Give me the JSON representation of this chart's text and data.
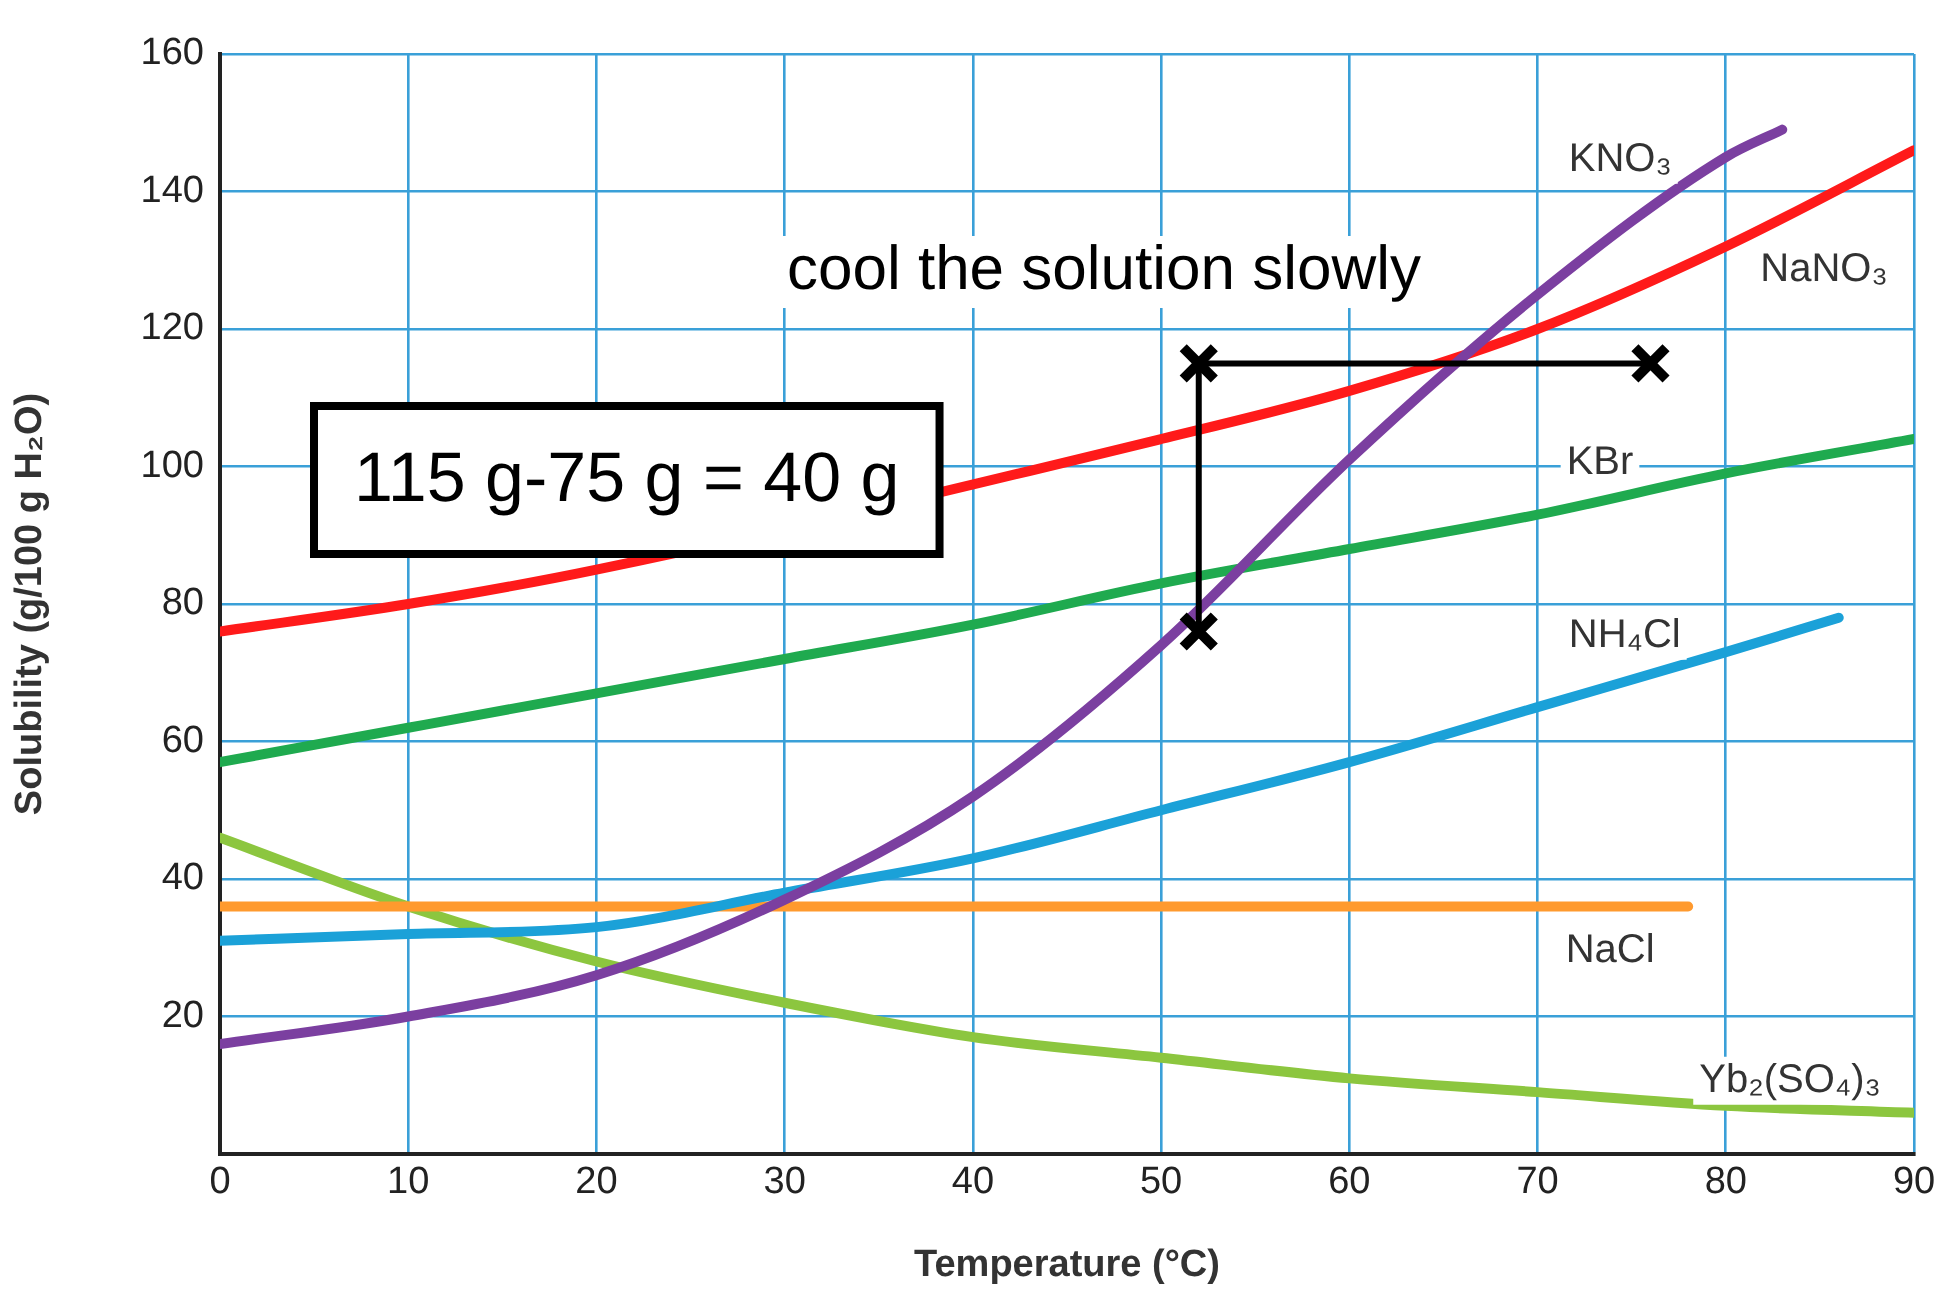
{
  "chart_data": {
    "type": "line",
    "xlabel": "Temperature (°C)",
    "ylabel": "Solubility (g/100 g H₂O)",
    "xlim": [
      0,
      90
    ],
    "xticks": [
      0,
      10,
      20,
      30,
      40,
      50,
      60,
      70,
      80,
      90
    ],
    "ylim": [
      0,
      160
    ],
    "yticks": [
      {
        "value": 0,
        "label": null
      },
      20,
      40,
      60,
      80,
      100,
      120,
      140,
      160
    ],
    "grid": true,
    "legend": false,
    "line_style": "solid",
    "marker": "none",
    "series": [
      {
        "name": "KNO₃",
        "color": "#7b3fa0",
        "x": [
          0,
          10,
          20,
          30,
          40,
          50,
          60,
          70,
          80,
          83
        ],
        "values": [
          16,
          20,
          26,
          37,
          52,
          74,
          101,
          125,
          145,
          149
        ]
      },
      {
        "name": "NaNO₃",
        "color": "#ff1a1a",
        "x": [
          0,
          10,
          20,
          30,
          40,
          50,
          60,
          70,
          80,
          90
        ],
        "values": [
          76,
          80,
          85,
          null,
          null,
          104,
          111,
          120,
          132,
          146
        ]
      },
      {
        "name": "KBr",
        "color": "#1faa4f",
        "x": [
          0,
          10,
          20,
          30,
          40,
          50,
          60,
          70,
          80,
          90
        ],
        "values": [
          57,
          62,
          67,
          72,
          77,
          83,
          88,
          93,
          99,
          104
        ]
      },
      {
        "name": "NH₄Cl",
        "color": "#1ba1d8",
        "x": [
          0,
          10,
          20,
          30,
          40,
          50,
          60,
          70,
          80,
          86
        ],
        "values": [
          31,
          32,
          33,
          38,
          43,
          50,
          57,
          65,
          73,
          78
        ]
      },
      {
        "name": "NaCl",
        "color": "#ff9a2e",
        "x": [
          0,
          78
        ],
        "values": [
          36,
          36
        ]
      },
      {
        "name": "Yb₂(SO₄)₃",
        "color": "#8cc63f",
        "x": [
          0,
          10,
          20,
          30,
          40,
          50,
          60,
          70,
          80,
          90
        ],
        "values": [
          46,
          36,
          28,
          22,
          17,
          14,
          11,
          9,
          7,
          6
        ]
      },
      {
        "color": "#000000",
        "marker": "cross",
        "x": [
          76,
          52,
          52
        ],
        "values": [
          115,
          115,
          76
        ]
      }
    ],
    "annotations": [
      "cool the solution slowly",
      "115 g-75 g = 40 g"
    ]
  }
}
